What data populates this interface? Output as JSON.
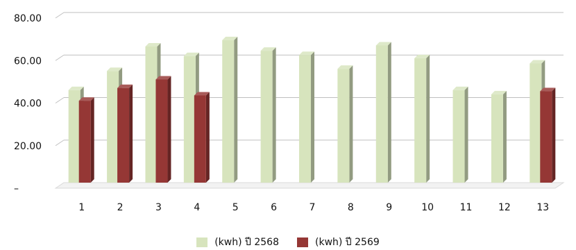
{
  "chart_data": {
    "type": "bar",
    "categories": [
      "1",
      "2",
      "3",
      "4",
      "5",
      "6",
      "7",
      "8",
      "9",
      "10",
      "11",
      "12",
      "13"
    ],
    "series": [
      {
        "name": "(kwh) ปี 2568",
        "color": "#d7e4bd",
        "values": [
          43.5,
          52.5,
          64,
          59.5,
          67,
          62,
          60,
          53.5,
          64.5,
          58.5,
          43.5,
          41.5,
          56
        ]
      },
      {
        "name": "(kwh) ปี 2569",
        "color": "#953735",
        "values": [
          38.5,
          44.5,
          48.5,
          41,
          null,
          null,
          null,
          null,
          null,
          null,
          null,
          null,
          43
        ]
      }
    ],
    "y_ticks": [
      "–",
      "20.00",
      "40.00",
      "60.00",
      "80.00"
    ],
    "ylim": [
      0,
      80
    ],
    "grid": true,
    "legend_position": "bottom",
    "title": "",
    "xlabel": "",
    "ylabel": ""
  }
}
